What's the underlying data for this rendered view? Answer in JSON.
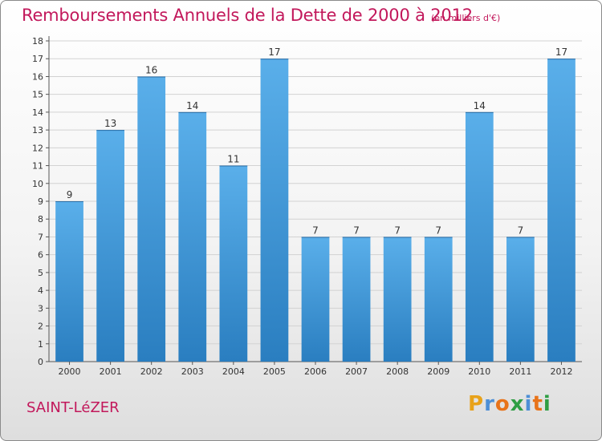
{
  "header": {
    "title": "Remboursements Annuels de la Dette de 2000 à 2012",
    "unit": "(en milliers d'€)"
  },
  "footer": {
    "place": "SAINT-LéZER",
    "logo": [
      "P",
      "r",
      "o",
      "x",
      "i",
      "t",
      "i"
    ],
    "logo_colors": [
      "#e8a21a",
      "#4d8fd6",
      "#e8731a",
      "#2f9e44",
      "#4d8fd6",
      "#e8731a",
      "#2f9e44"
    ]
  },
  "colors": {
    "accent": "#c2185b",
    "bar_top": "#5aafea",
    "bar_bottom": "#2a7ec0"
  },
  "chart_data": {
    "type": "bar",
    "categories": [
      "2000",
      "2001",
      "2002",
      "2003",
      "2004",
      "2005",
      "2006",
      "2007",
      "2008",
      "2009",
      "2010",
      "2011",
      "2012"
    ],
    "values": [
      9,
      13,
      16,
      14,
      11,
      17,
      7,
      7,
      7,
      7,
      14,
      7,
      17
    ],
    "title": "Remboursements Annuels de la Dette de 2000 à 2012",
    "ylim": [
      0,
      18
    ],
    "yticks": [
      0,
      1,
      2,
      3,
      4,
      5,
      6,
      7,
      8,
      9,
      10,
      11,
      12,
      13,
      14,
      15,
      16,
      17,
      18
    ],
    "grid": true
  }
}
